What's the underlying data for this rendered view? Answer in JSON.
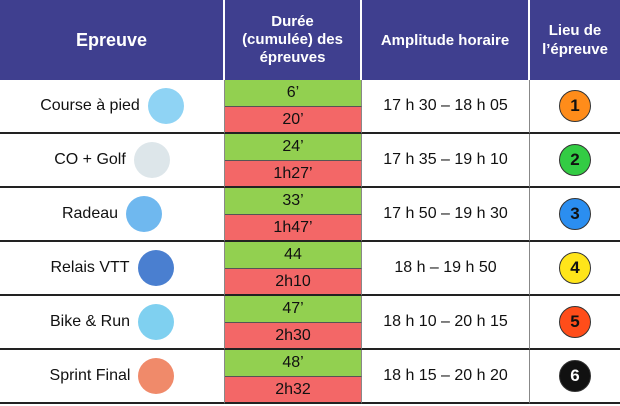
{
  "header": {
    "epreuve": "Epreuve",
    "duree": [
      "Durée",
      "(cumulée) des",
      "épreuves"
    ],
    "amplitude": "Amplitude horaire",
    "lieu": [
      "Lieu de",
      "l’épreuve"
    ]
  },
  "rows": [
    {
      "epreuve": "Course à pied",
      "duree": [
        "6’",
        "20’"
      ],
      "amplitude": "17 h 30 – 18 h 05",
      "lieu": "1",
      "lieu_color": "#ff8c1a"
    },
    {
      "epreuve": "CO + Golf",
      "duree": [
        "24’",
        "1h27’"
      ],
      "amplitude": "17 h 35 – 19 h 10",
      "lieu": "2",
      "lieu_color": "#33cc44"
    },
    {
      "epreuve": "Radeau",
      "duree": [
        "33’",
        "1h47’"
      ],
      "amplitude": "17 h 50 – 19 h 30",
      "lieu": "3",
      "lieu_color": "#2b8ef0"
    },
    {
      "epreuve": "Relais VTT",
      "duree": [
        "44",
        "2h10"
      ],
      "amplitude": "18 h – 19 h 50",
      "lieu": "4",
      "lieu_color": "#ffe51a"
    },
    {
      "epreuve": "Bike & Run",
      "duree": [
        "47’",
        "2h30"
      ],
      "amplitude": "18 h 10 – 20 h 15",
      "lieu": "5",
      "lieu_color": "#ff4d1a"
    },
    {
      "epreuve": "Sprint Final",
      "duree": [
        "48’",
        "2h32"
      ],
      "amplitude": "18 h 15 – 20 h 20",
      "lieu": "6",
      "lieu_color": "#111111"
    }
  ]
}
